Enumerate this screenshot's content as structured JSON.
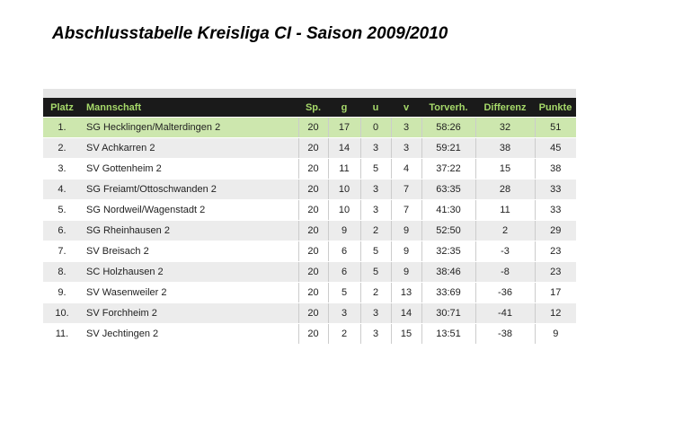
{
  "title": "Abschlusstabelle Kreisliga CI - Saison 2009/2010",
  "table": {
    "headers": {
      "platz": "Platz",
      "mannschaft": "Mannschaft",
      "sp": "Sp.",
      "g": "g",
      "u": "u",
      "v": "v",
      "torverh": "Torverh.",
      "differenz": "Differenz",
      "punkte": "Punkte"
    },
    "rows": [
      {
        "platz": "1.",
        "mannschaft": "SG Hecklingen/Malterdingen 2",
        "sp": "20",
        "g": "17",
        "u": "0",
        "v": "3",
        "torverh": "58:26",
        "differenz": "32",
        "punkte": "51"
      },
      {
        "platz": "2.",
        "mannschaft": "SV Achkarren 2",
        "sp": "20",
        "g": "14",
        "u": "3",
        "v": "3",
        "torverh": "59:21",
        "differenz": "38",
        "punkte": "45"
      },
      {
        "platz": "3.",
        "mannschaft": "SV Gottenheim 2",
        "sp": "20",
        "g": "11",
        "u": "5",
        "v": "4",
        "torverh": "37:22",
        "differenz": "15",
        "punkte": "38"
      },
      {
        "platz": "4.",
        "mannschaft": "SG Freiamt/Ottoschwanden 2",
        "sp": "20",
        "g": "10",
        "u": "3",
        "v": "7",
        "torverh": "63:35",
        "differenz": "28",
        "punkte": "33"
      },
      {
        "platz": "5.",
        "mannschaft": "SG Nordweil/Wagenstadt 2",
        "sp": "20",
        "g": "10",
        "u": "3",
        "v": "7",
        "torverh": "41:30",
        "differenz": "11",
        "punkte": "33"
      },
      {
        "platz": "6.",
        "mannschaft": "SG Rheinhausen 2",
        "sp": "20",
        "g": "9",
        "u": "2",
        "v": "9",
        "torverh": "52:50",
        "differenz": "2",
        "punkte": "29"
      },
      {
        "platz": "7.",
        "mannschaft": "SV Breisach 2",
        "sp": "20",
        "g": "6",
        "u": "5",
        "v": "9",
        "torverh": "32:35",
        "differenz": "-3",
        "punkte": "23"
      },
      {
        "platz": "8.",
        "mannschaft": "SC Holzhausen 2",
        "sp": "20",
        "g": "6",
        "u": "5",
        "v": "9",
        "torverh": "38:46",
        "differenz": "-8",
        "punkte": "23"
      },
      {
        "platz": "9.",
        "mannschaft": "SV Wasenweiler 2",
        "sp": "20",
        "g": "5",
        "u": "2",
        "v": "13",
        "torverh": "33:69",
        "differenz": "-36",
        "punkte": "17"
      },
      {
        "platz": "10.",
        "mannschaft": "SV Forchheim 2",
        "sp": "20",
        "g": "3",
        "u": "3",
        "v": "14",
        "torverh": "30:71",
        "differenz": "-41",
        "punkte": "12"
      },
      {
        "platz": "11.",
        "mannschaft": "SV Jechtingen 2",
        "sp": "20",
        "g": "2",
        "u": "3",
        "v": "15",
        "torverh": "13:51",
        "differenz": "-38",
        "punkte": "9"
      }
    ]
  },
  "colors": {
    "header_bg": "#1a1a1a",
    "header_text": "#a6d96a",
    "highlight_row": "#cde7ae",
    "stripe_row": "#ececec"
  }
}
